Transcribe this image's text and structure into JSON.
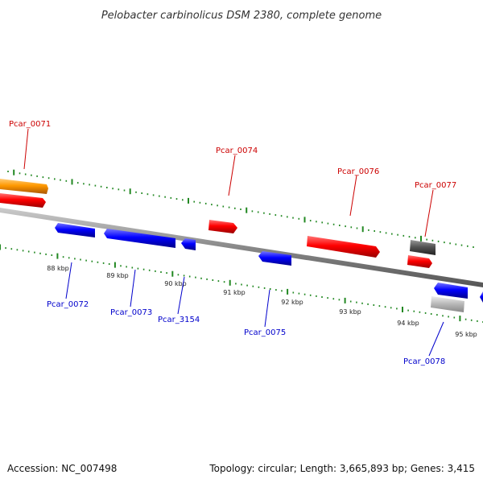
{
  "title": "Pelobacter carbinolicus DSM 2380, complete genome",
  "footer": {
    "accession": "Accession: NC_007498",
    "summary": "Topology: circular; Length: 3,665,893 bp; Genes: 3,415"
  },
  "colors": {
    "forward_gene": "#ff0000",
    "reverse_gene": "#0000ff",
    "special_gene": "#ff9900",
    "dark_gray_gene": "#555555",
    "light_gray_gene": "#bbbbbb",
    "backbone": "#888888",
    "tick": "#228822"
  },
  "tick_labels": [
    "88 kbp",
    "89 kbp",
    "90 kbp",
    "91 kbp",
    "92 kbp",
    "93 kbp",
    "94 kbp",
    "95 kbp"
  ],
  "genes_top": [
    {
      "label": "Pcar_0071",
      "color": "#cc0000"
    },
    {
      "label": "Pcar_0074",
      "color": "#cc0000"
    },
    {
      "label": "Pcar_0076",
      "color": "#cc0000"
    },
    {
      "label": "Pcar_0077",
      "color": "#cc0000"
    }
  ],
  "genes_bottom": [
    {
      "label": "Pcar_0072",
      "color": "#0000cc"
    },
    {
      "label": "Pcar_0073",
      "color": "#0000cc"
    },
    {
      "label": "Pcar_3154",
      "color": "#0000cc"
    },
    {
      "label": "Pcar_0075",
      "color": "#0000cc"
    },
    {
      "label": "Pcar_0078",
      "color": "#0000cc"
    }
  ]
}
